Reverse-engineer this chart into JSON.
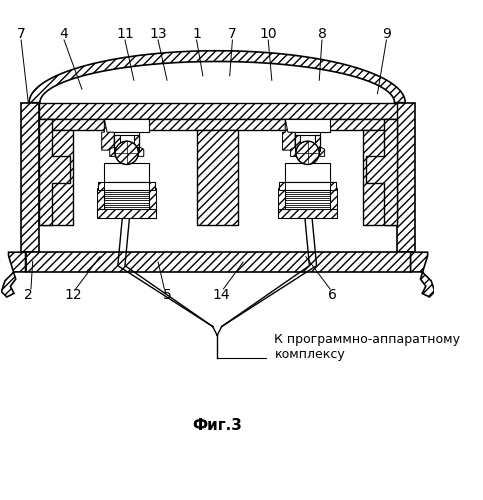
{
  "title": "Фиг.3",
  "annotation_text": "К программно-аппаратному\nкомплексу",
  "bg_color": "#ffffff",
  "font_size": 10,
  "title_font_size": 11
}
